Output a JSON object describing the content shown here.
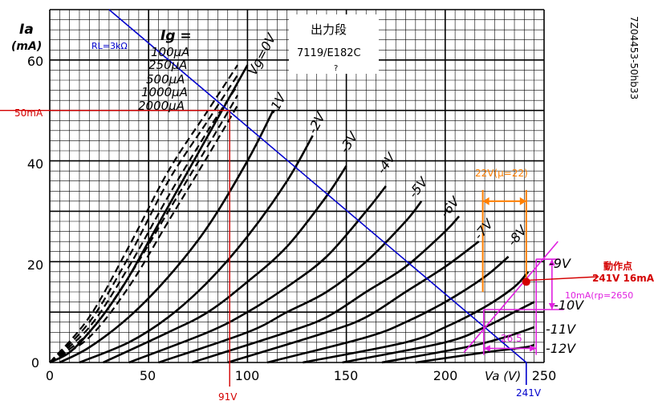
{
  "chart_data": {
    "type": "line",
    "title": "出力段",
    "subtitle": "7119/E182C",
    "subtitle_extra": "?",
    "catalog_number": "7Z04453-50hb33",
    "xlabel": "Va (V)",
    "ylabel": "Ia",
    "ylabel_unit": "(mA)",
    "xlim": [
      0,
      250
    ],
    "ylim": [
      0,
      70
    ],
    "x_ticks": [
      "0",
      "50",
      "100",
      "150",
      "200",
      "250"
    ],
    "y_ticks": [
      "0",
      "20",
      "40",
      "60"
    ],
    "grid": true,
    "grid_heading": "Ig =",
    "grid_current_labels": [
      "100μA",
      "250μA",
      "500μA",
      "1000μA",
      "2000μA"
    ],
    "grid_current_curves": [
      {
        "name": "100μA",
        "x": [
          0,
          20,
          40,
          60,
          80,
          95
        ],
        "y": [
          0,
          9,
          23,
          38,
          50,
          59
        ]
      },
      {
        "name": "250μA",
        "x": [
          0,
          20,
          40,
          60,
          80,
          95
        ],
        "y": [
          0,
          8,
          21,
          36,
          48,
          57
        ]
      },
      {
        "name": "500μA",
        "x": [
          0,
          20,
          40,
          60,
          80,
          95
        ],
        "y": [
          0,
          7,
          19,
          33,
          46,
          55
        ]
      },
      {
        "name": "1000μA",
        "x": [
          0,
          20,
          40,
          60,
          80,
          95
        ],
        "y": [
          0,
          6,
          17,
          30,
          43,
          53
        ]
      },
      {
        "name": "2000μA",
        "x": [
          0,
          20,
          40,
          60,
          80,
          95
        ],
        "y": [
          0,
          5,
          15,
          28,
          41,
          51
        ]
      }
    ],
    "series": [
      {
        "name": "Vg=0V",
        "label": "Vg=0V",
        "x": [
          0,
          10,
          20,
          30,
          40,
          50,
          60,
          70,
          80,
          90,
          100
        ],
        "y": [
          0,
          2,
          6,
          11,
          17,
          24,
          31,
          38,
          45,
          52,
          59
        ]
      },
      {
        "name": "-1V",
        "label": "-1V",
        "x": [
          5,
          20,
          40,
          60,
          80,
          100,
          113
        ],
        "y": [
          0,
          3,
          9,
          17,
          27,
          40,
          50
        ]
      },
      {
        "name": "-2V",
        "label": "-2V",
        "x": [
          15,
          40,
          60,
          80,
          100,
          120,
          133
        ],
        "y": [
          0,
          4,
          9,
          16,
          25,
          36,
          45
        ]
      },
      {
        "name": "-3V",
        "label": "-3V",
        "x": [
          27,
          60,
          80,
          100,
          120,
          140,
          150
        ],
        "y": [
          0,
          6,
          10,
          16,
          23,
          33,
          39
        ]
      },
      {
        "name": "-4V",
        "label": "-4V",
        "x": [
          40,
          80,
          100,
          120,
          140,
          160,
          170
        ],
        "y": [
          0,
          6,
          10,
          15,
          21,
          30,
          35
        ]
      },
      {
        "name": "-5V",
        "label": "-5V",
        "x": [
          55,
          100,
          120,
          140,
          160,
          180,
          188
        ],
        "y": [
          0,
          6,
          10,
          14,
          20,
          28,
          32
        ]
      },
      {
        "name": "-6V",
        "label": "-6V",
        "x": [
          72,
          120,
          140,
          160,
          180,
          200,
          207
        ],
        "y": [
          0,
          6,
          9,
          14,
          19,
          26,
          29
        ]
      },
      {
        "name": "-7V",
        "label": "-7V",
        "x": [
          90,
          140,
          160,
          180,
          200,
          217
        ],
        "y": [
          0,
          6,
          9,
          14,
          19,
          24
        ]
      },
      {
        "name": "-8V",
        "label": "-8V",
        "x": [
          110,
          160,
          180,
          200,
          220,
          232
        ],
        "y": [
          0,
          5,
          8,
          12,
          17,
          21
        ]
      },
      {
        "name": "-9V",
        "label": "-9V",
        "x": [
          128,
          180,
          200,
          220,
          235,
          242
        ],
        "y": [
          0,
          4,
          7,
          11,
          15,
          18
        ]
      },
      {
        "name": "-10V",
        "label": "-10V",
        "x": [
          148,
          200,
          220,
          235,
          245
        ],
        "y": [
          0,
          4,
          7,
          10,
          12
        ]
      },
      {
        "name": "-11V",
        "label": "-11V",
        "x": [
          168,
          210,
          230,
          245
        ],
        "y": [
          0,
          3,
          5,
          7
        ]
      },
      {
        "name": "-12V",
        "label": "-12V",
        "x": [
          185,
          220,
          240,
          245
        ],
        "y": [
          0,
          2,
          3,
          3.5
        ]
      }
    ],
    "load_line": {
      "label": "RL=3kΩ",
      "x": [
        30,
        241
      ],
      "y": [
        70,
        0
      ]
    },
    "operating_point": {
      "label": "動作点",
      "value_label": "241V 16mA",
      "x": 241,
      "y": 16
    },
    "marker_50mA": {
      "label": "50mA",
      "x": 91,
      "y": 50
    },
    "marker_91V": {
      "label": "91V",
      "x": 91
    },
    "marker_241V": {
      "label": "241V",
      "x": 241
    },
    "mu_annotation": {
      "label": "22V(μ=22)",
      "x_from": 219,
      "x_to": 241,
      "y": 32
    },
    "rp_annotation": {
      "label": "10mA(rp=2650",
      "y_from": 10.5,
      "y_to": 20.5
    },
    "delta_v_annotation": {
      "label": "26.5",
      "x_from": 219.5,
      "x_to": 246
    },
    "colors": {
      "curves": "#000000",
      "load_line": "#0000cc",
      "markers": "#d40000",
      "mu_bracket": "#ff7f00",
      "rp_construction": "#e020e0",
      "grid": "#000000"
    }
  }
}
